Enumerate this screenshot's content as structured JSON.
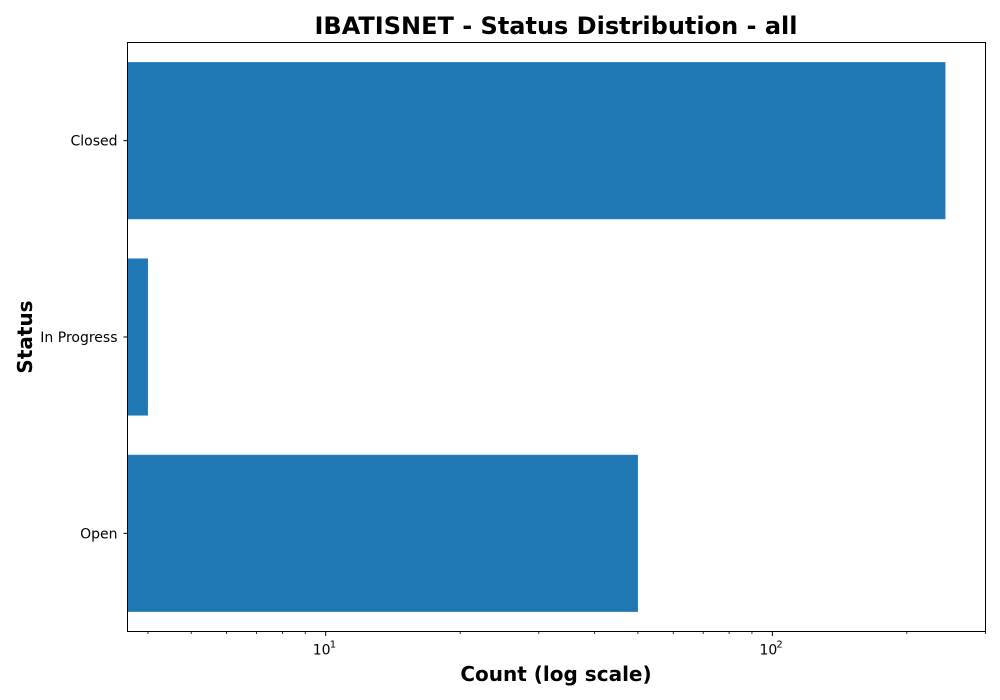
{
  "chart_data": {
    "type": "bar",
    "orientation": "horizontal",
    "title": "IBATISNET - Status Distribution - all",
    "xlabel": "Count (log scale)",
    "ylabel": "Status",
    "xscale": "log",
    "xlim": [
      3.6,
      300
    ],
    "categories": [
      "Closed",
      "In Progress",
      "Open"
    ],
    "values": [
      244,
      4,
      50
    ],
    "major_ticks": [
      {
        "value": 10,
        "base": "10",
        "exp": "1"
      },
      {
        "value": 100,
        "base": "10",
        "exp": "2"
      }
    ],
    "bar_color": "#1f77b4",
    "grid": false,
    "legend": false
  }
}
